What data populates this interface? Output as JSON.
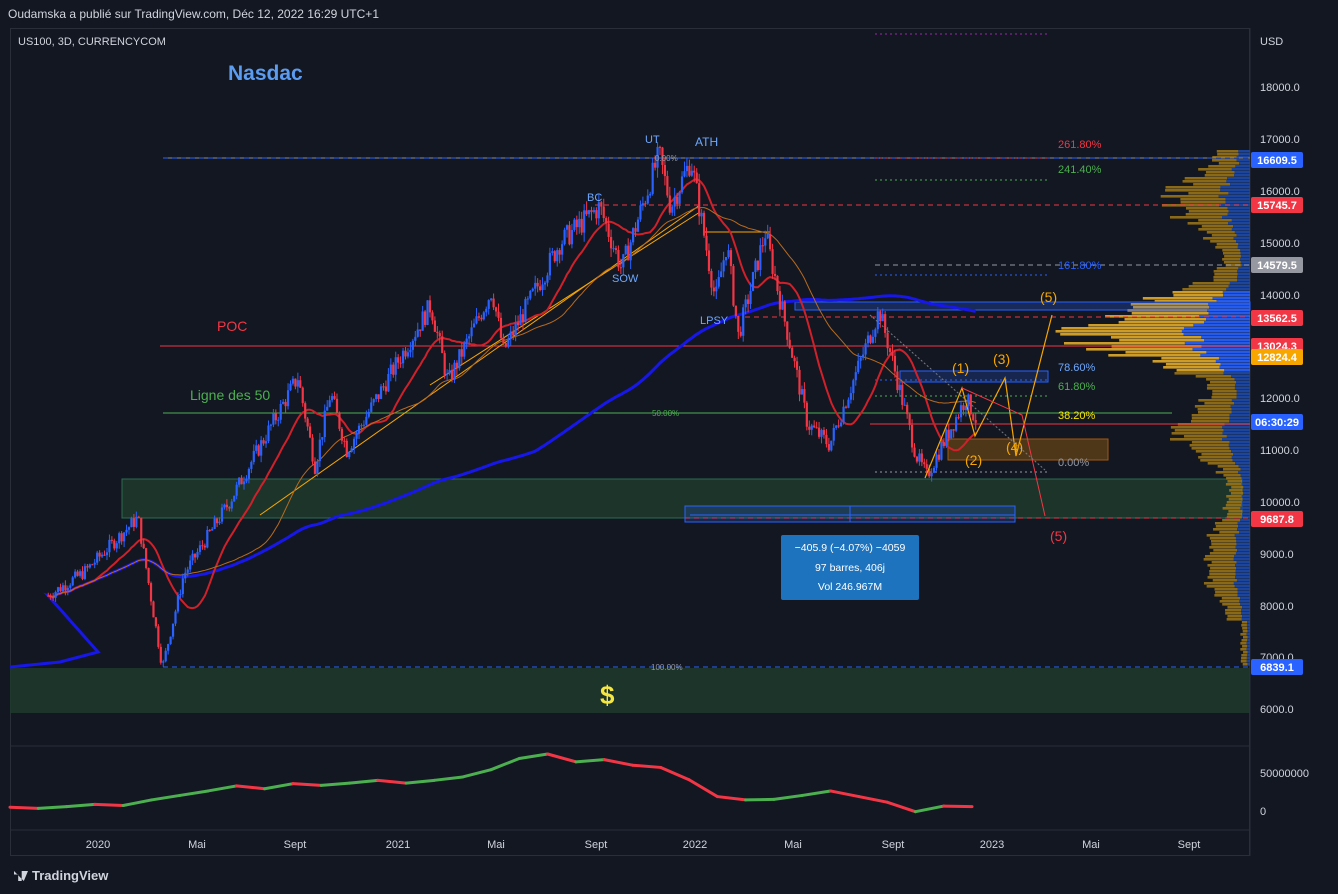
{
  "header": {
    "publisher": "Oudamska a publié sur TradingView.com, Déc 12, 2022 16:29 UTC+1"
  },
  "symbol": "US100, 3D, CURRENCYCOM",
  "currency": "USD",
  "branding": "TradingView",
  "chart_data": [
    {
      "type": "candlestick",
      "title": "Nasdac",
      "ylabel": "USD",
      "ylim": [
        6000,
        19000
      ],
      "yscale": "log",
      "y_ticks": [
        6000.0,
        7000.0,
        8000.0,
        9000.0,
        10000.0,
        11000.0,
        12000.0,
        13000.0,
        14000.0,
        15000.0,
        16000.0,
        17000.0,
        18000.0
      ],
      "x_ticks": [
        "2020",
        "Mai",
        "Sept",
        "2021",
        "Mai",
        "Sept",
        "2022",
        "Mai",
        "Sept",
        "2023",
        "Mai",
        "Sept"
      ],
      "price_path": [
        {
          "date": "2019-11-01",
          "close": 8200
        },
        {
          "date": "2019-12-15",
          "close": 8650
        },
        {
          "date": "2020-02-19",
          "close": 9700
        },
        {
          "date": "2020-03-20",
          "close": 6800
        },
        {
          "date": "2020-04-15",
          "close": 8600
        },
        {
          "date": "2020-06-10",
          "close": 10000
        },
        {
          "date": "2020-09-02",
          "close": 12400
        },
        {
          "date": "2020-09-23",
          "close": 10700
        },
        {
          "date": "2020-10-12",
          "close": 12100
        },
        {
          "date": "2020-11-01",
          "close": 11000
        },
        {
          "date": "2021-02-12",
          "close": 13800
        },
        {
          "date": "2021-03-05",
          "close": 12300
        },
        {
          "date": "2021-04-28",
          "close": 14100
        },
        {
          "date": "2021-05-12",
          "close": 12900
        },
        {
          "date": "2021-07-20",
          "close": 15000
        },
        {
          "date": "2021-09-07",
          "close": 15700
        },
        {
          "date": "2021-10-04",
          "close": 14500
        },
        {
          "date": "2021-11-19",
          "close": 16700
        },
        {
          "date": "2021-12-03",
          "close": 15700
        },
        {
          "date": "2021-12-28",
          "close": 16600
        },
        {
          "date": "2022-01-27",
          "close": 13900
        },
        {
          "date": "2022-02-10",
          "close": 15000
        },
        {
          "date": "2022-02-24",
          "close": 13200
        },
        {
          "date": "2022-03-29",
          "close": 15200
        },
        {
          "date": "2022-05-20",
          "close": 11500
        },
        {
          "date": "2022-06-16",
          "close": 11100
        },
        {
          "date": "2022-08-16",
          "close": 13700
        },
        {
          "date": "2022-09-30",
          "close": 10900
        },
        {
          "date": "2022-10-13",
          "close": 10500
        },
        {
          "date": "2022-11-30",
          "close": 12000
        },
        {
          "date": "2022-12-12",
          "close": 11600
        }
      ],
      "moving_averages": [
        {
          "name": "MA blue",
          "color": "#1717e8"
        },
        {
          "name": "MA red",
          "color": "#d0202a"
        },
        {
          "name": "MA orange",
          "color": "#b86a1e"
        }
      ],
      "price_labels": [
        {
          "value": "16609.5",
          "color": "#2962ff"
        },
        {
          "value": "15745.7",
          "color": "#f23645"
        },
        {
          "value": "14579.5",
          "color": "#9598a1"
        },
        {
          "value": "13562.5",
          "color": "#f23645"
        },
        {
          "value": "13024.3",
          "color": "#f23645"
        },
        {
          "value": "12824.4",
          "color": "#f7a600"
        },
        {
          "value": "06:30:29",
          "color": "#2962ff"
        },
        {
          "value": "9687.8",
          "color": "#f23645"
        },
        {
          "value": "6839.1",
          "color": "#2962ff"
        }
      ],
      "fib_levels": [
        "0.00%",
        "261.80%",
        "241.40%",
        "161.80%",
        "78.60%",
        "61.80%",
        "50.00%",
        "38.20%",
        "0.00%",
        "100.00%"
      ],
      "annotations": [
        "UT",
        "ATH",
        "BC",
        "SOW",
        "LPSY",
        "POC",
        "Ligne des 50",
        "(1)",
        "(2)",
        "(3)",
        "(4)",
        "(5)",
        "(5)",
        "$"
      ],
      "measure_box": [
        "−405.9 (−4.07%) −4059",
        "97 barres, 406j",
        "Vol 246.967M"
      ]
    },
    {
      "type": "line",
      "y_ticks": [
        "50000000",
        "0"
      ],
      "series": [
        {
          "color_up": "#4caf50",
          "color_down": "#f23645",
          "values": [
            0.5,
            0.3,
            0.6,
            1.0,
            0.8,
            1.8,
            2.6,
            3.4,
            4.3,
            3.8,
            4.7,
            4.4,
            4.8,
            5.3,
            4.8,
            5.3,
            5.9,
            7.2,
            9.2,
            10.0,
            8.6,
            9.0,
            8.0,
            7.6,
            5.4,
            2.4,
            1.8,
            1.9,
            2.6,
            3.4,
            2.4,
            1.4,
            -0.3,
            0.7,
            0.6
          ]
        }
      ]
    }
  ]
}
